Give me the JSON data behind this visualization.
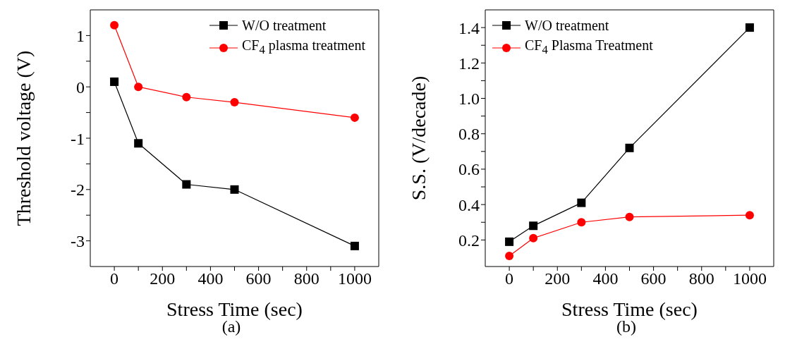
{
  "chart_data": [
    {
      "type": "line",
      "xlabel": "Stress Time (sec)",
      "ylabel": "Threshold voltage (V)",
      "annotations": [
        "(a)"
      ],
      "x": [
        0,
        100,
        300,
        500,
        1000
      ],
      "series": [
        {
          "name": "W/O treatment",
          "color": "#000000",
          "marker": "square",
          "values": [
            0.1,
            -1.1,
            -1.9,
            -2.0,
            -3.1
          ]
        },
        {
          "name": "CF$_{4}$ plasma treatment",
          "color": "#ff0000",
          "marker": "circle",
          "values": [
            1.2,
            0.0,
            -0.2,
            -0.3,
            -0.6
          ]
        }
      ],
      "xlim": [
        -100,
        1100
      ],
      "xticks": [
        0,
        {
          "value": 100,
          "label": null
        },
        200,
        {
          "value": 300,
          "label": null
        },
        400,
        {
          "value": 500,
          "label": null
        },
        600,
        {
          "value": 700,
          "label": null
        },
        800,
        {
          "value": 900,
          "label": null
        },
        1000
      ],
      "ylim": [
        -3.5,
        1.5
      ],
      "yticks": [
        -3,
        {
          "value": -2.5,
          "label": null
        },
        -2,
        {
          "value": -1.5,
          "label": null
        },
        -1,
        {
          "value": -0.5,
          "label": null
        },
        0,
        {
          "value": 0.5,
          "label": null
        },
        1
      ],
      "grid": false,
      "legend": "top right",
      "line_style": "solid"
    },
    {
      "type": "line",
      "xlabel": "Stress Time (sec)",
      "ylabel": "S.S. (V/decade)",
      "annotations": [
        "(b)"
      ],
      "x": [
        0,
        100,
        300,
        500,
        1000
      ],
      "series": [
        {
          "name": "W/O treatment",
          "color": "#000000",
          "marker": "square",
          "values": [
            0.19,
            0.28,
            0.41,
            0.72,
            1.4
          ]
        },
        {
          "name": "CF$_{4}$ Plasma Treatment",
          "color": "#ff0000",
          "marker": "circle",
          "values": [
            0.11,
            0.21,
            0.3,
            0.33,
            0.34
          ]
        }
      ],
      "xlim": [
        -100,
        1100
      ],
      "xticks": [
        0,
        {
          "value": 100,
          "label": null
        },
        200,
        {
          "value": 300,
          "label": null
        },
        400,
        {
          "value": 500,
          "label": null
        },
        600,
        {
          "value": 700,
          "label": null
        },
        800,
        {
          "value": 900,
          "label": null
        },
        1000
      ],
      "ylim": [
        0.05,
        1.5
      ],
      "yticks": [
        0.2,
        {
          "value": 0.3,
          "label": null
        },
        0.4,
        {
          "value": 0.5,
          "label": null
        },
        0.6,
        {
          "value": 0.7,
          "label": null
        },
        0.8,
        {
          "value": 0.9,
          "label": null
        },
        {
          "value": 1,
          "label": "1.0"
        },
        {
          "value": 1.1,
          "label": null
        },
        1.2,
        {
          "value": 1.3,
          "label": null
        },
        1.4
      ],
      "grid": false,
      "legend": "top left",
      "line_style": "solid"
    }
  ]
}
